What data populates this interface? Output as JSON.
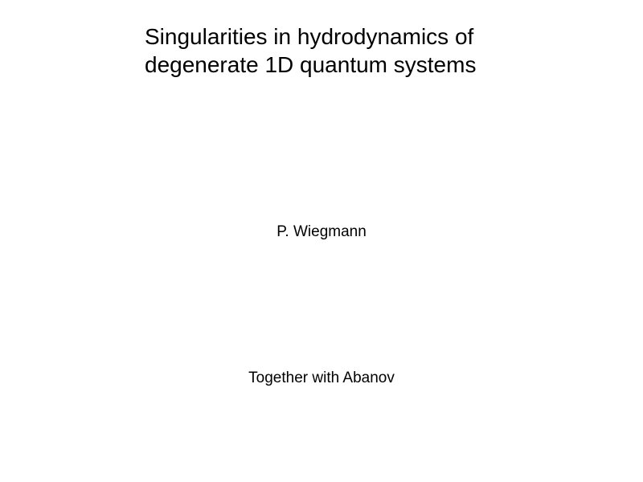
{
  "slide": {
    "title": "Singularities in  hydrodynamics of degenerate 1D quantum systems",
    "author": "P.  Wiegmann",
    "collaboration": "Together with  Abanov",
    "title_fontsize": 28,
    "body_fontsize": 19,
    "background_color": "#ffffff",
    "text_color": "#000000"
  }
}
